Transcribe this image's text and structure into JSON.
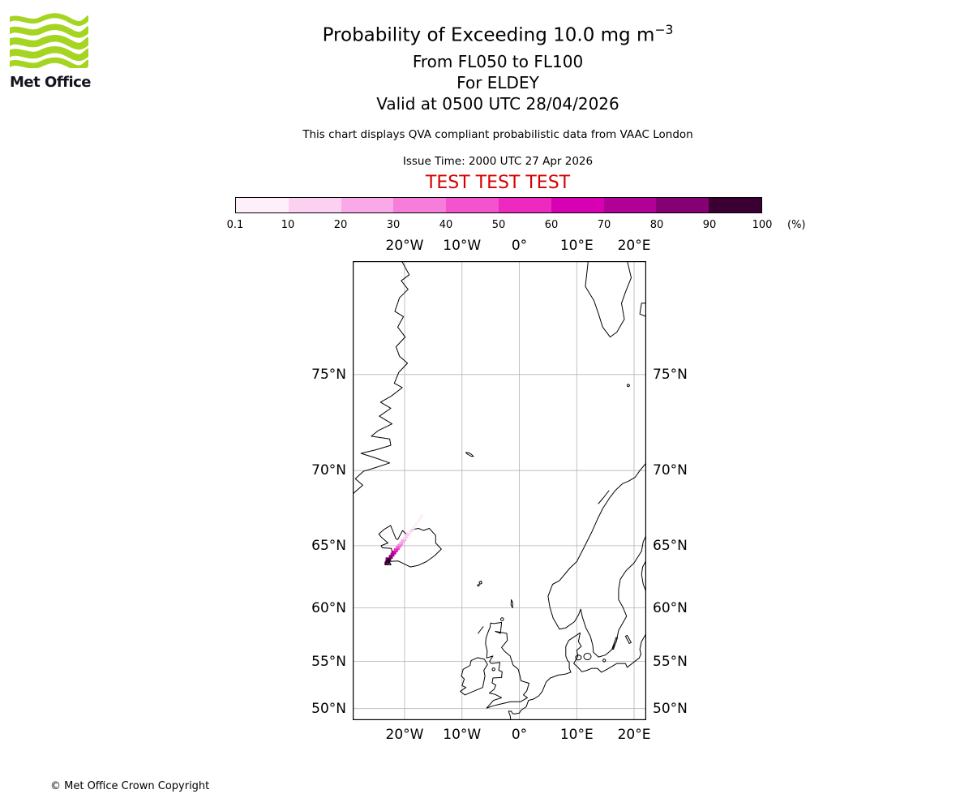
{
  "header": {
    "logo_text": "Met Office",
    "title": "Probability of Exceeding 10.0 mg m",
    "title_sup": "−3",
    "subtitle1": "From FL050 to FL100",
    "subtitle2": "For ELDEY",
    "subtitle3": "Valid at 0500 UTC 28/04/2026",
    "note": "This chart displays QVA compliant probabilistic data from VAAC London",
    "issue_time": "Issue Time: 2000 UTC 27 Apr 2026",
    "test_banner": "TEST TEST TEST",
    "test_color": "#d60000"
  },
  "colorbar": {
    "unit_label": "(%)",
    "tick_labels": [
      "0.1",
      "10",
      "20",
      "30",
      "40",
      "50",
      "60",
      "70",
      "80",
      "90",
      "100"
    ],
    "colors": [
      "#fdf0fb",
      "#fbd0f1",
      "#f9a9e7",
      "#f77ddb",
      "#f354ce",
      "#ee29c0",
      "#d701b3",
      "#b00095",
      "#850073",
      "#3a0033"
    ]
  },
  "map": {
    "grid_color": "#b3b3b3",
    "coast_color": "#000000",
    "lon_ticks": [
      {
        "label": "20°W",
        "lon": -20
      },
      {
        "label": "10°W",
        "lon": -10
      },
      {
        "label": "0°",
        "lon": 0
      },
      {
        "label": "10°E",
        "lon": 10
      },
      {
        "label": "20°E",
        "lon": 20
      }
    ],
    "lat_ticks": [
      {
        "label": "75°N",
        "lat": 75
      },
      {
        "label": "70°N",
        "lat": 70
      },
      {
        "label": "65°N",
        "lat": 65
      },
      {
        "label": "60°N",
        "lat": 60
      },
      {
        "label": "55°N",
        "lat": 55
      },
      {
        "label": "50°N",
        "lat": 50
      }
    ]
  },
  "plume": {
    "source": {
      "lon": -22.9,
      "lat": 63.74
    },
    "cells": [
      [
        -22.9,
        63.72,
        "#3a0033"
      ],
      [
        -23.1,
        63.82,
        "#3a0033"
      ],
      [
        -22.95,
        63.92,
        "#3a0033"
      ],
      [
        -22.75,
        63.78,
        "#3a0033"
      ],
      [
        -23.25,
        63.7,
        "#850073"
      ],
      [
        -22.7,
        63.95,
        "#850073"
      ],
      [
        -23.05,
        64.02,
        "#850073"
      ],
      [
        -22.6,
        63.98,
        "#3a0033"
      ],
      [
        -22.31,
        64.13,
        "#850073"
      ],
      [
        -22.5,
        64.2,
        "#850073"
      ],
      [
        -22.02,
        64.3,
        "#b00095"
      ],
      [
        -22.2,
        64.37,
        "#b00095"
      ],
      [
        -21.72,
        64.46,
        "#b00095"
      ],
      [
        -21.9,
        64.53,
        "#d701b3"
      ],
      [
        -21.43,
        64.63,
        "#d701b3"
      ],
      [
        -21.6,
        64.7,
        "#ee29c0"
      ],
      [
        -21.13,
        64.79,
        "#ee29c0"
      ],
      [
        -21.3,
        64.86,
        "#f354ce"
      ],
      [
        -20.84,
        64.96,
        "#f354ce"
      ],
      [
        -21.0,
        65.03,
        "#f77ddb"
      ],
      [
        -20.54,
        65.12,
        "#f77ddb"
      ],
      [
        -20.7,
        65.19,
        "#f9a9e7"
      ],
      [
        -20.25,
        65.29,
        "#f9a9e7"
      ],
      [
        -20.4,
        65.36,
        "#f9a9e7"
      ],
      [
        -19.95,
        65.45,
        "#f9a9e7"
      ],
      [
        -20.1,
        65.52,
        "#fbd0f1"
      ],
      [
        -19.66,
        65.62,
        "#fbd0f1"
      ],
      [
        -19.8,
        65.69,
        "#fbd0f1"
      ],
      [
        -19.36,
        65.78,
        "#fbd0f1"
      ],
      [
        -19.5,
        65.85,
        "#fbd0f1"
      ],
      [
        -19.07,
        65.95,
        "#fbd0f1"
      ],
      [
        -19.2,
        66.02,
        "#fdf0fb"
      ],
      [
        -18.77,
        66.11,
        "#fbd0f1"
      ],
      [
        -18.48,
        66.28,
        "#fdf0fb"
      ],
      [
        -18.18,
        66.44,
        "#fdf0fb"
      ],
      [
        -17.89,
        66.61,
        "#fdf0fb"
      ],
      [
        -17.59,
        66.77,
        "#fdf0fb"
      ],
      [
        -17.3,
        66.94,
        "#fdf0fb"
      ],
      [
        -17.0,
        67.1,
        "#fdf0fb"
      ]
    ]
  },
  "footer": {
    "copyright": "© Met Office Crown Copyright"
  }
}
